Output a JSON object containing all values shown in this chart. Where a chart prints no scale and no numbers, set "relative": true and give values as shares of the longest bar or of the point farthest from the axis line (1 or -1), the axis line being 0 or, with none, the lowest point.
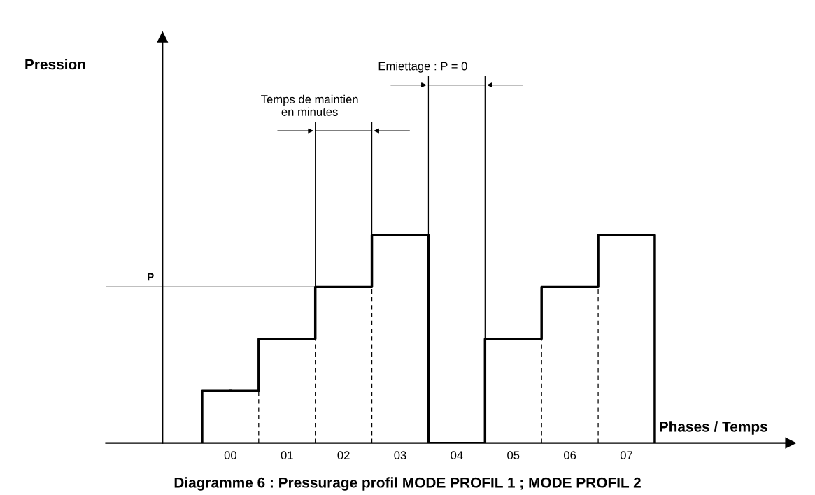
{
  "chart_data": {
    "type": "step",
    "title": "Diagramme 6 : Pressurage profil MODE PROFIL 1 ; MODE PROFIL 2",
    "xlabel": "Phases / Temps",
    "relative": true,
    "color": "#000000",
    "categories": [
      "00",
      "01",
      "02",
      "03",
      "04",
      "05",
      "06",
      "07"
    ],
    "values": [
      0.25,
      0.5,
      0.75,
      1,
      0,
      0.5,
      0.75,
      1
    ],
    "ref_lines": [
      {
        "axis": "y",
        "value": 0.75,
        "label": "P"
      }
    ],
    "annotations": [
      "Temps de maintien\nen minutes",
      "Emiettage : P = 0",
      "Pression"
    ],
    "grid": false,
    "legend": false
  }
}
